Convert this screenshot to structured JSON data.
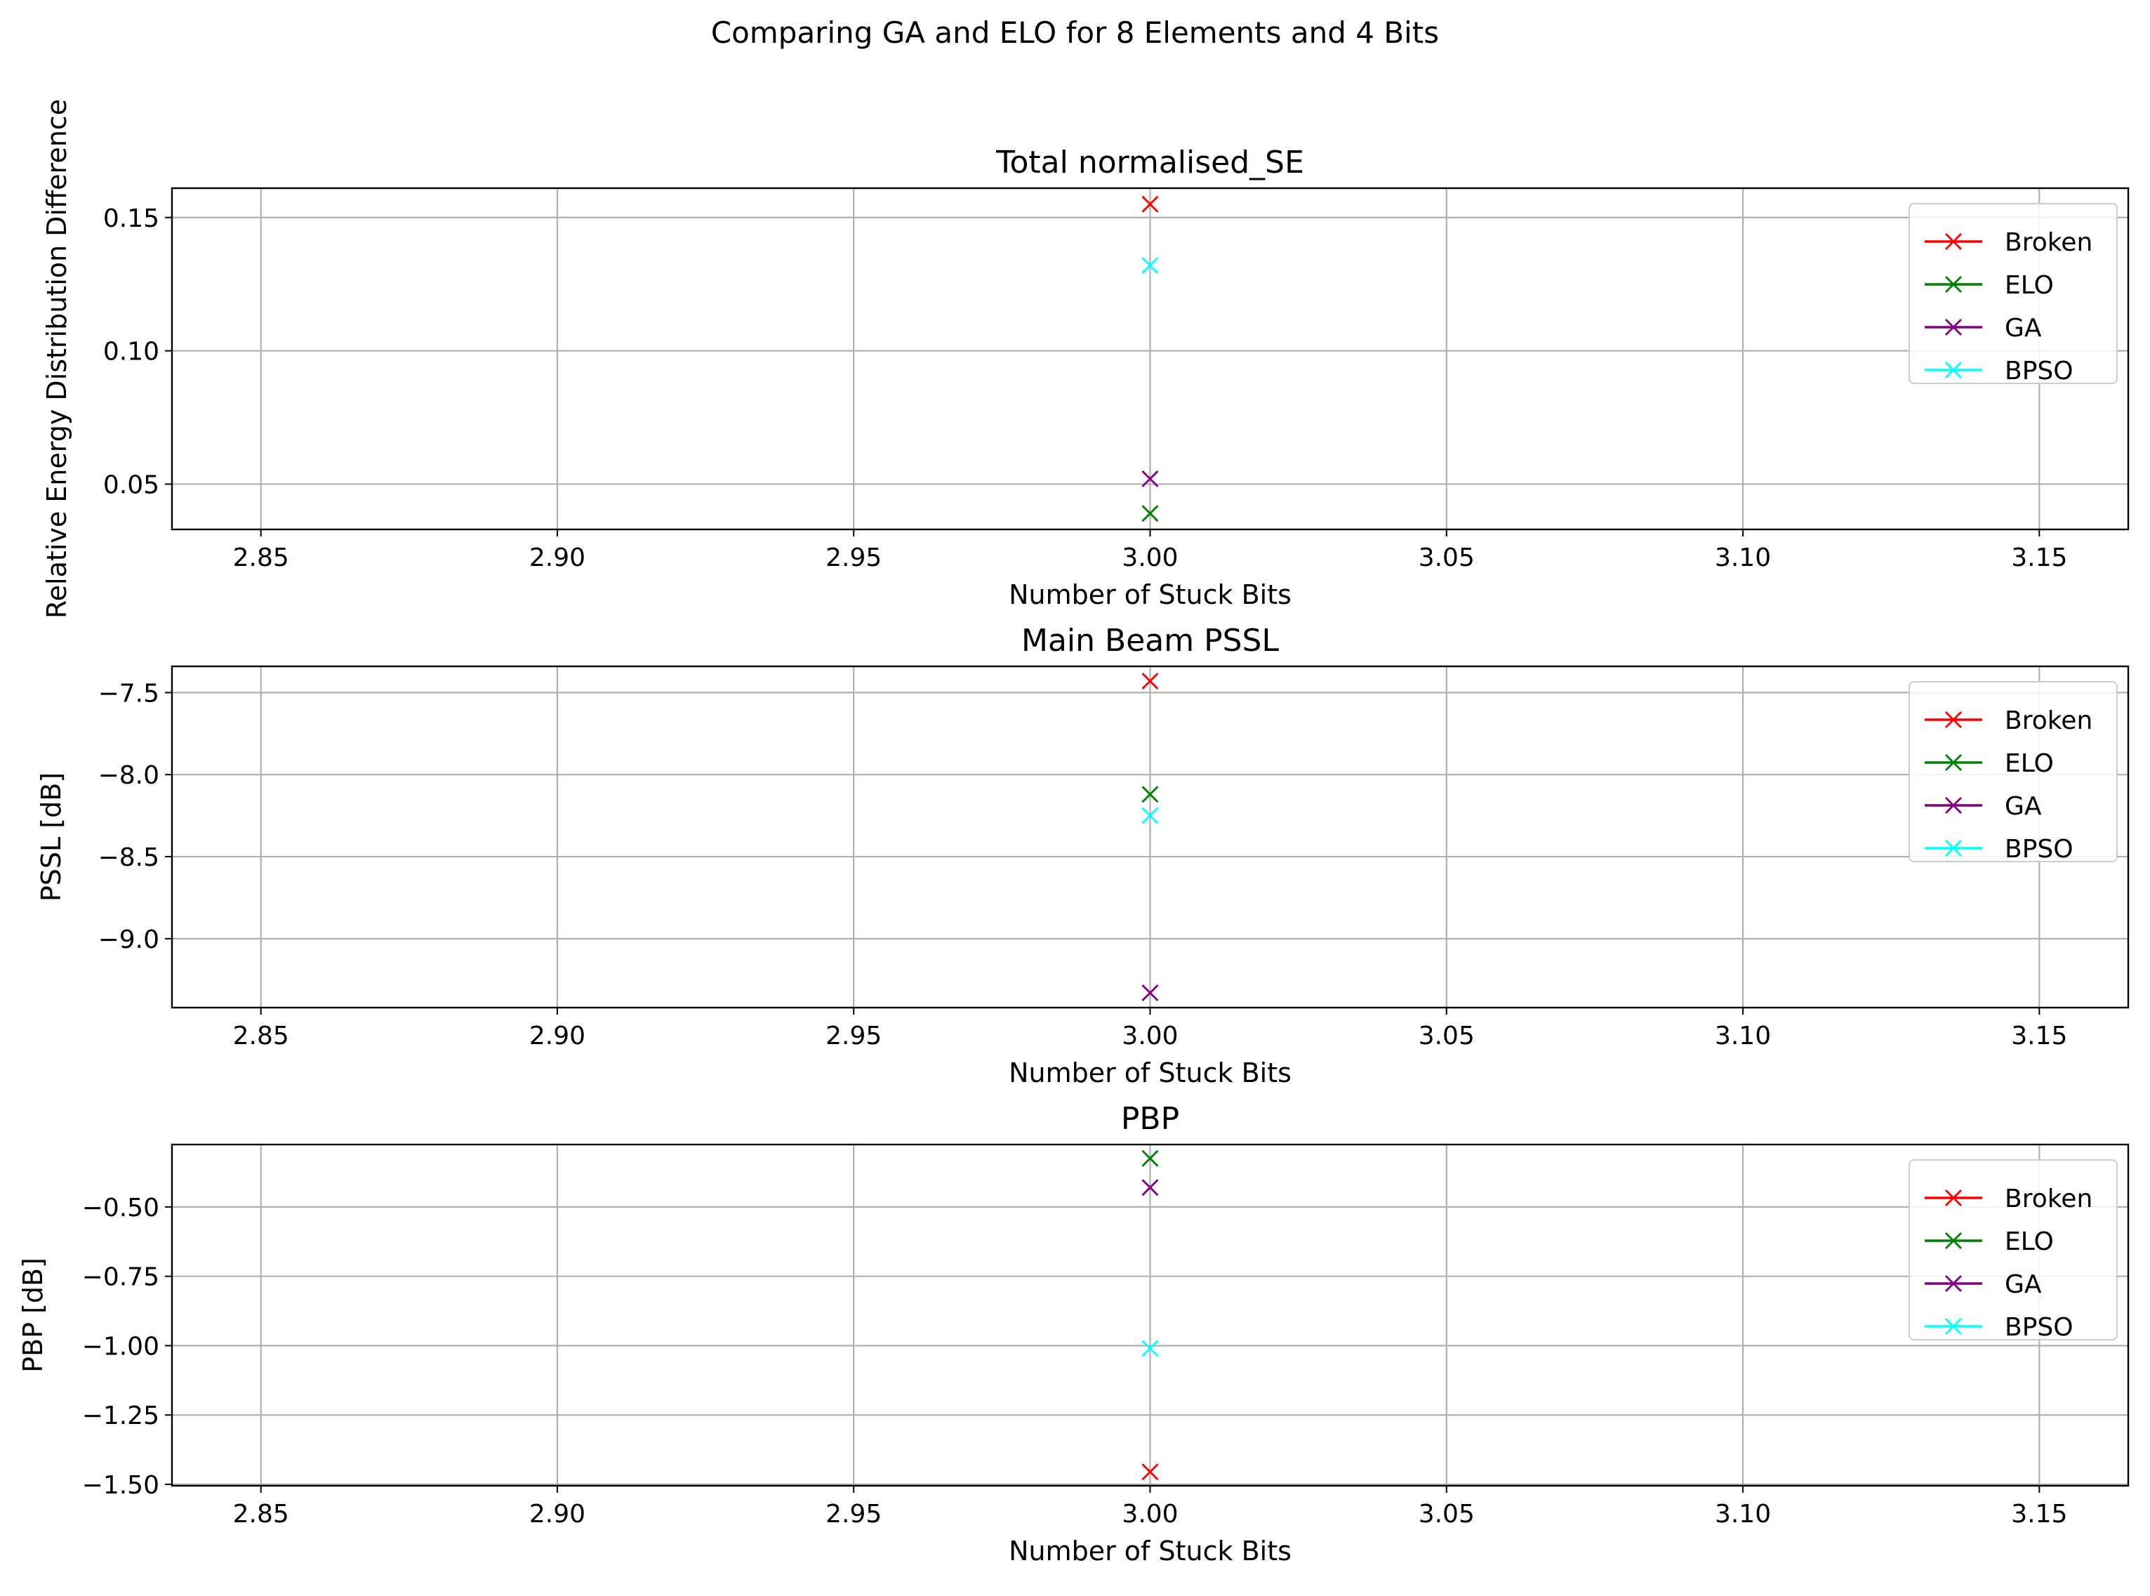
{
  "figure": {
    "suptitle": "Comparing GA and ELO for 8 Elements and 4 Bits"
  },
  "colors": {
    "Broken": "#ff0000",
    "ELO": "#008000",
    "GA": "#800080",
    "BPSO": "#00ffff"
  },
  "chart_data": [
    {
      "type": "scatter",
      "title": "Total normalised_SE",
      "xlabel": "Number of Stuck Bits",
      "ylabel": "Relative Energy Distribution Difference",
      "xlim": [
        2.835,
        3.165
      ],
      "ylim": [
        0.033,
        0.161
      ],
      "xticks": [
        "2.85",
        "2.90",
        "2.95",
        "3.00",
        "3.05",
        "3.10",
        "3.15"
      ],
      "xtick_values": [
        2.85,
        2.9,
        2.95,
        3.0,
        3.05,
        3.1,
        3.15
      ],
      "yticks": [
        "0.05",
        "0.10",
        "0.15"
      ],
      "ytick_values": [
        0.05,
        0.1,
        0.15
      ],
      "grid": true,
      "legend_position": "top-right",
      "series": [
        {
          "name": "Broken",
          "x": [
            3.0
          ],
          "y": [
            0.155
          ]
        },
        {
          "name": "ELO",
          "x": [
            3.0
          ],
          "y": [
            0.039
          ]
        },
        {
          "name": "GA",
          "x": [
            3.0
          ],
          "y": [
            0.052
          ]
        },
        {
          "name": "BPSO",
          "x": [
            3.0
          ],
          "y": [
            0.132
          ]
        }
      ]
    },
    {
      "type": "scatter",
      "title": "Main Beam PSSL",
      "xlabel": "Number of Stuck Bits",
      "ylabel": "PSSL [dB]",
      "xlim": [
        2.835,
        3.165
      ],
      "ylim": [
        -9.42,
        -7.34
      ],
      "xticks": [
        "2.85",
        "2.90",
        "2.95",
        "3.00",
        "3.05",
        "3.10",
        "3.15"
      ],
      "xtick_values": [
        2.85,
        2.9,
        2.95,
        3.0,
        3.05,
        3.1,
        3.15
      ],
      "yticks": [
        "−7.5",
        "−8.0",
        "−8.5",
        "−9.0"
      ],
      "ytick_values": [
        -7.5,
        -8.0,
        -8.5,
        -9.0
      ],
      "grid": true,
      "legend_position": "top-right",
      "series": [
        {
          "name": "Broken",
          "x": [
            3.0
          ],
          "y": [
            -7.43
          ]
        },
        {
          "name": "ELO",
          "x": [
            3.0
          ],
          "y": [
            -8.12
          ]
        },
        {
          "name": "GA",
          "x": [
            3.0
          ],
          "y": [
            -9.33
          ]
        },
        {
          "name": "BPSO",
          "x": [
            3.0
          ],
          "y": [
            -8.25
          ]
        }
      ]
    },
    {
      "type": "scatter",
      "title": "PBP",
      "xlabel": "Number of Stuck Bits",
      "ylabel": "PBP [dB]",
      "xlim": [
        2.835,
        3.165
      ],
      "ylim": [
        -1.505,
        -0.275
      ],
      "xticks": [
        "2.85",
        "2.90",
        "2.95",
        "3.00",
        "3.05",
        "3.10",
        "3.15"
      ],
      "xtick_values": [
        2.85,
        2.9,
        2.95,
        3.0,
        3.05,
        3.1,
        3.15
      ],
      "yticks": [
        "−0.50",
        "−0.75",
        "−1.00",
        "−1.25",
        "−1.50"
      ],
      "ytick_values": [
        -0.5,
        -0.75,
        -1.0,
        -1.25,
        -1.5
      ],
      "grid": true,
      "legend_position": "top-right",
      "series": [
        {
          "name": "Broken",
          "x": [
            3.0
          ],
          "y": [
            -1.455
          ]
        },
        {
          "name": "ELO",
          "x": [
            3.0
          ],
          "y": [
            -0.325
          ]
        },
        {
          "name": "GA",
          "x": [
            3.0
          ],
          "y": [
            -0.43
          ]
        },
        {
          "name": "BPSO",
          "x": [
            3.0
          ],
          "y": [
            -1.01
          ]
        }
      ]
    }
  ]
}
